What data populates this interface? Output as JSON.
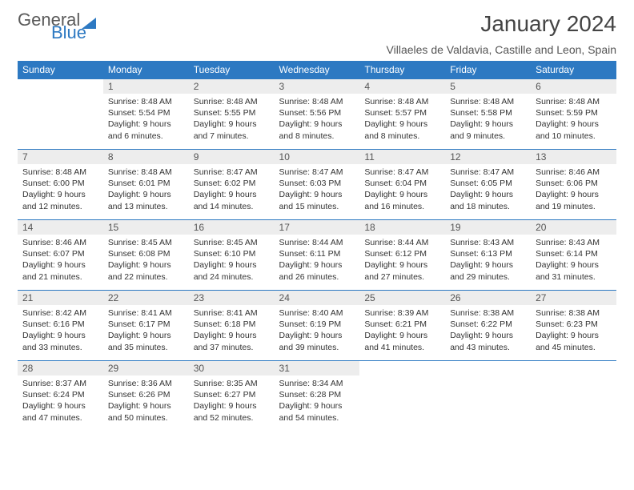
{
  "logo": {
    "part1": "General",
    "part2": "Blue"
  },
  "title": "January 2024",
  "subtitle": "Villaeles de Valdavia, Castille and Leon, Spain",
  "weekdays": [
    "Sunday",
    "Monday",
    "Tuesday",
    "Wednesday",
    "Thursday",
    "Friday",
    "Saturday"
  ],
  "days": {
    "1": {
      "sunrise": "8:48 AM",
      "sunset": "5:54 PM",
      "daylight": "9 hours and 6 minutes."
    },
    "2": {
      "sunrise": "8:48 AM",
      "sunset": "5:55 PM",
      "daylight": "9 hours and 7 minutes."
    },
    "3": {
      "sunrise": "8:48 AM",
      "sunset": "5:56 PM",
      "daylight": "9 hours and 8 minutes."
    },
    "4": {
      "sunrise": "8:48 AM",
      "sunset": "5:57 PM",
      "daylight": "9 hours and 8 minutes."
    },
    "5": {
      "sunrise": "8:48 AM",
      "sunset": "5:58 PM",
      "daylight": "9 hours and 9 minutes."
    },
    "6": {
      "sunrise": "8:48 AM",
      "sunset": "5:59 PM",
      "daylight": "9 hours and 10 minutes."
    },
    "7": {
      "sunrise": "8:48 AM",
      "sunset": "6:00 PM",
      "daylight": "9 hours and 12 minutes."
    },
    "8": {
      "sunrise": "8:48 AM",
      "sunset": "6:01 PM",
      "daylight": "9 hours and 13 minutes."
    },
    "9": {
      "sunrise": "8:47 AM",
      "sunset": "6:02 PM",
      "daylight": "9 hours and 14 minutes."
    },
    "10": {
      "sunrise": "8:47 AM",
      "sunset": "6:03 PM",
      "daylight": "9 hours and 15 minutes."
    },
    "11": {
      "sunrise": "8:47 AM",
      "sunset": "6:04 PM",
      "daylight": "9 hours and 16 minutes."
    },
    "12": {
      "sunrise": "8:47 AM",
      "sunset": "6:05 PM",
      "daylight": "9 hours and 18 minutes."
    },
    "13": {
      "sunrise": "8:46 AM",
      "sunset": "6:06 PM",
      "daylight": "9 hours and 19 minutes."
    },
    "14": {
      "sunrise": "8:46 AM",
      "sunset": "6:07 PM",
      "daylight": "9 hours and 21 minutes."
    },
    "15": {
      "sunrise": "8:45 AM",
      "sunset": "6:08 PM",
      "daylight": "9 hours and 22 minutes."
    },
    "16": {
      "sunrise": "8:45 AM",
      "sunset": "6:10 PM",
      "daylight": "9 hours and 24 minutes."
    },
    "17": {
      "sunrise": "8:44 AM",
      "sunset": "6:11 PM",
      "daylight": "9 hours and 26 minutes."
    },
    "18": {
      "sunrise": "8:44 AM",
      "sunset": "6:12 PM",
      "daylight": "9 hours and 27 minutes."
    },
    "19": {
      "sunrise": "8:43 AM",
      "sunset": "6:13 PM",
      "daylight": "9 hours and 29 minutes."
    },
    "20": {
      "sunrise": "8:43 AM",
      "sunset": "6:14 PM",
      "daylight": "9 hours and 31 minutes."
    },
    "21": {
      "sunrise": "8:42 AM",
      "sunset": "6:16 PM",
      "daylight": "9 hours and 33 minutes."
    },
    "22": {
      "sunrise": "8:41 AM",
      "sunset": "6:17 PM",
      "daylight": "9 hours and 35 minutes."
    },
    "23": {
      "sunrise": "8:41 AM",
      "sunset": "6:18 PM",
      "daylight": "9 hours and 37 minutes."
    },
    "24": {
      "sunrise": "8:40 AM",
      "sunset": "6:19 PM",
      "daylight": "9 hours and 39 minutes."
    },
    "25": {
      "sunrise": "8:39 AM",
      "sunset": "6:21 PM",
      "daylight": "9 hours and 41 minutes."
    },
    "26": {
      "sunrise": "8:38 AM",
      "sunset": "6:22 PM",
      "daylight": "9 hours and 43 minutes."
    },
    "27": {
      "sunrise": "8:38 AM",
      "sunset": "6:23 PM",
      "daylight": "9 hours and 45 minutes."
    },
    "28": {
      "sunrise": "8:37 AM",
      "sunset": "6:24 PM",
      "daylight": "9 hours and 47 minutes."
    },
    "29": {
      "sunrise": "8:36 AM",
      "sunset": "6:26 PM",
      "daylight": "9 hours and 50 minutes."
    },
    "30": {
      "sunrise": "8:35 AM",
      "sunset": "6:27 PM",
      "daylight": "9 hours and 52 minutes."
    },
    "31": {
      "sunrise": "8:34 AM",
      "sunset": "6:28 PM",
      "daylight": "9 hours and 54 minutes."
    }
  },
  "layout": {
    "startWeekday": 1,
    "numDays": 31
  },
  "labels": {
    "sunrise": "Sunrise:",
    "sunset": "Sunset:",
    "daylight": "Daylight:"
  },
  "colors": {
    "header_bg": "#2d79c2",
    "header_fg": "#ffffff",
    "daynum_bg": "#ededed",
    "border": "#2d79c2",
    "text": "#333333"
  }
}
